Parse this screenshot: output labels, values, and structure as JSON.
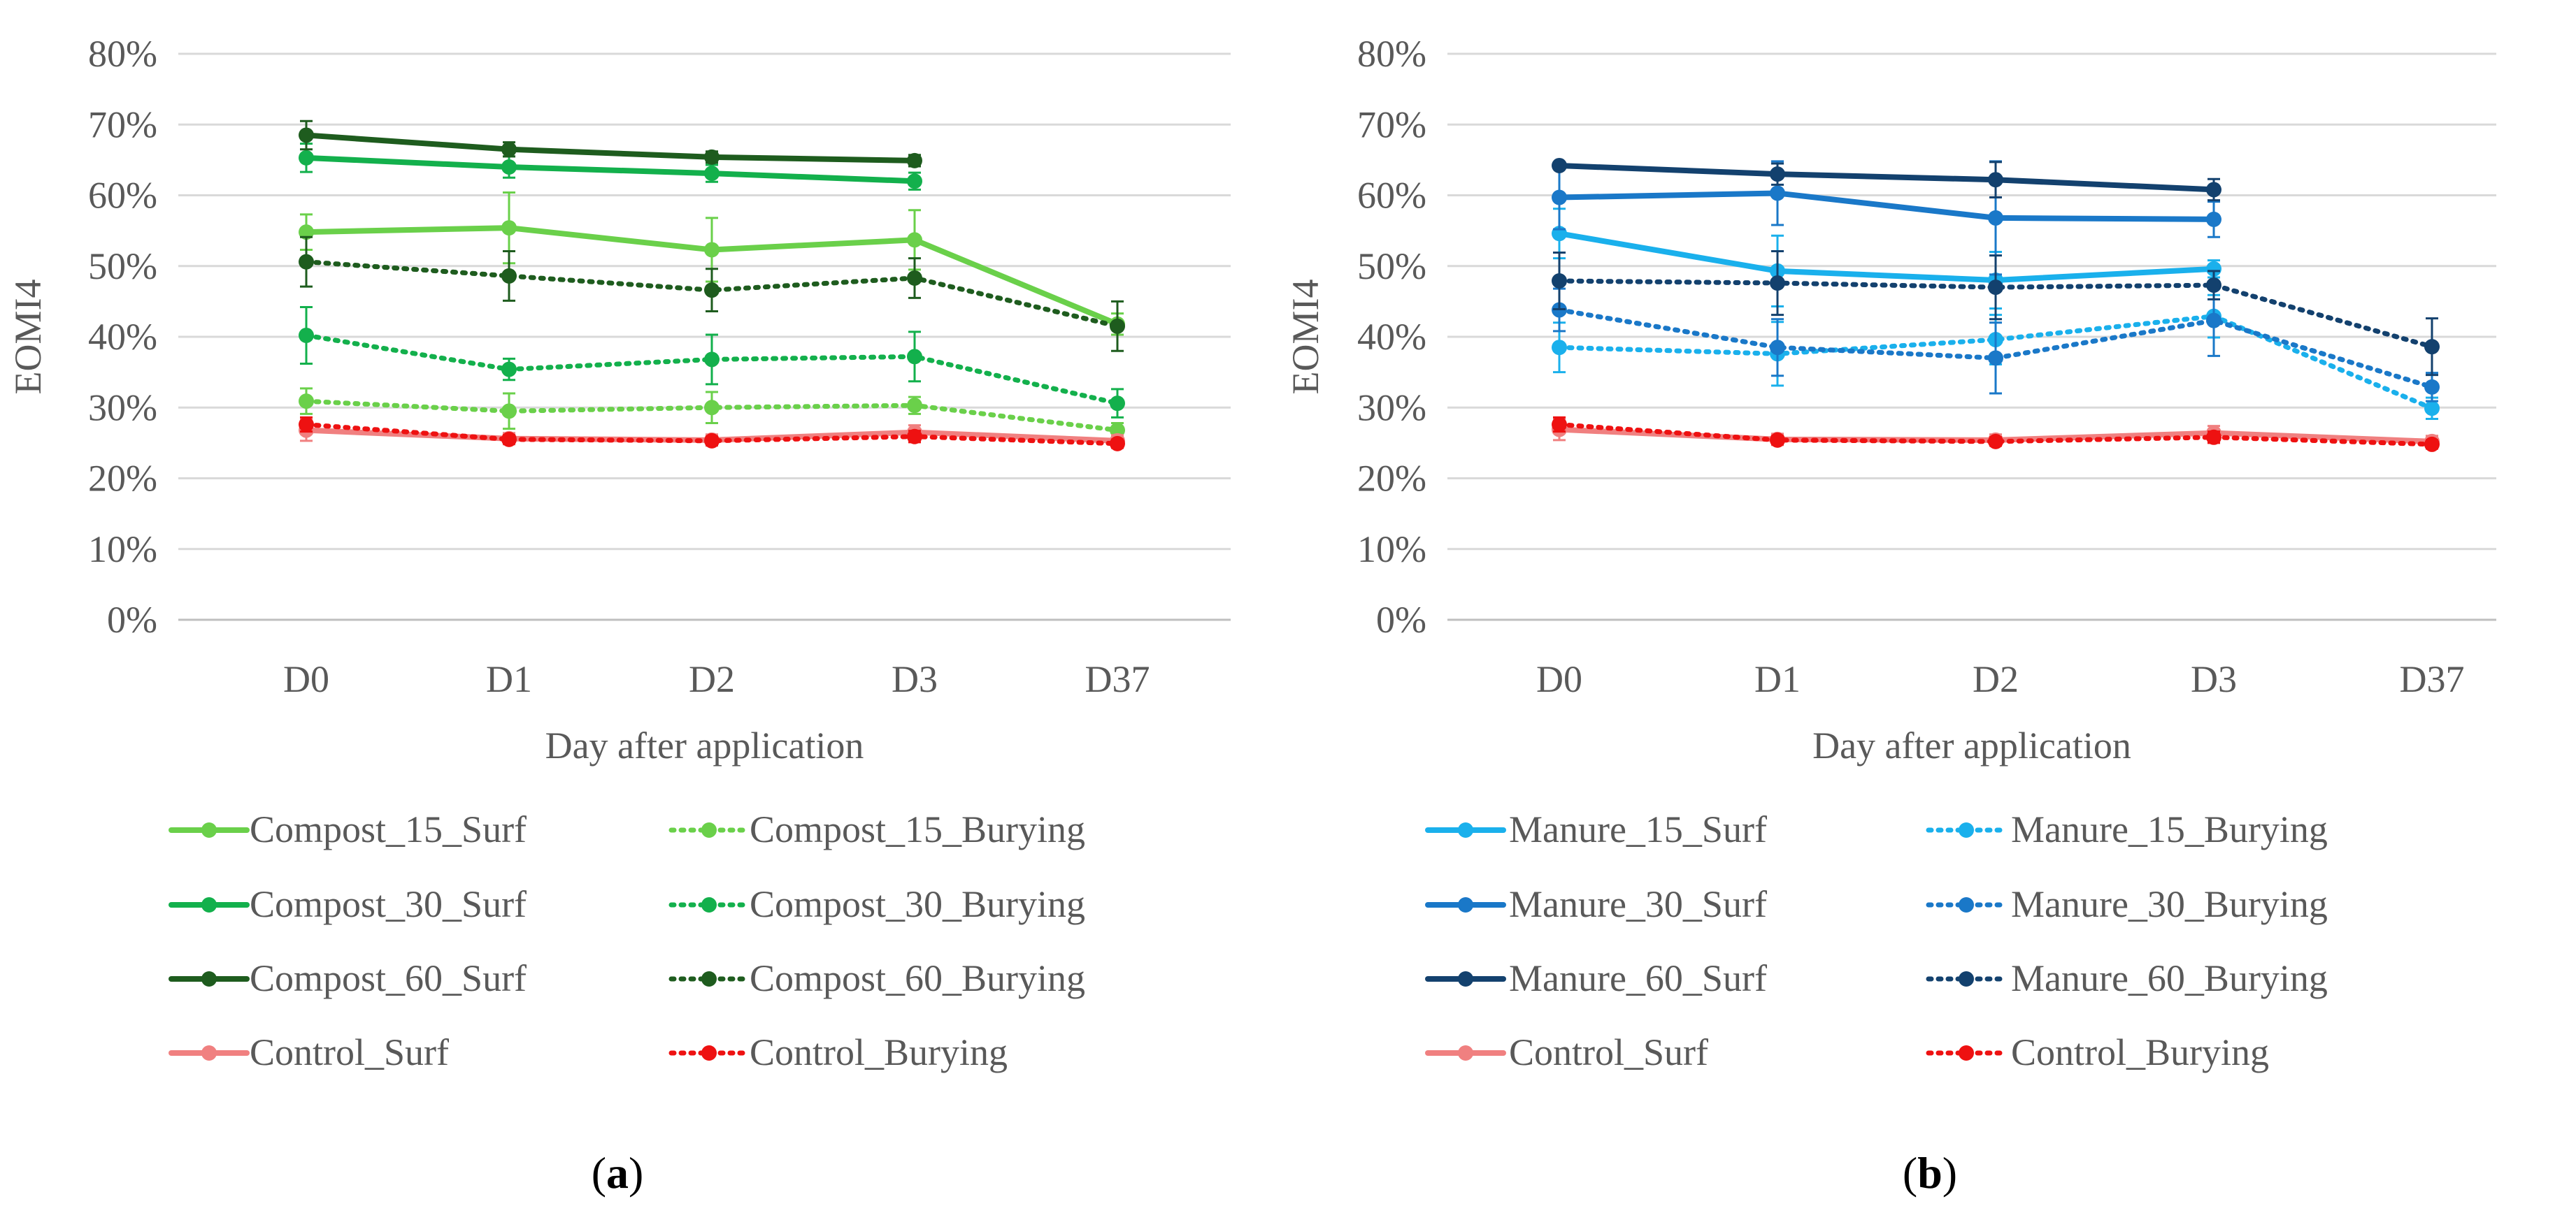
{
  "figure_title": "",
  "chart_data": [
    {
      "type": "line",
      "panel_label": "(a)",
      "categories": [
        "D0",
        "D1",
        "D2",
        "D3",
        "D37"
      ],
      "x_ticks": [
        "D0",
        "D1",
        "D2",
        "D3",
        "D37"
      ],
      "xlabel": "Day after application",
      "ylabel": "EOMI4",
      "ylim": [
        0,
        80
      ],
      "y_ticks": [
        "0%",
        "10%",
        "20%",
        "30%",
        "40%",
        "50%",
        "60%",
        "70%",
        "80%"
      ],
      "grid": true,
      "legend_position": "bottom",
      "series": [
        {
          "name": "Compost_15_Surf",
          "color": "#6ad04a",
          "dash": "solid",
          "values": [
            54.8,
            55.4,
            52.3,
            53.7,
            41.8
          ],
          "errors": [
            2.5,
            5.0,
            4.5,
            4.2,
            1.5
          ]
        },
        {
          "name": "Compost_15_Burying",
          "color": "#6ad04a",
          "dash": "dotted",
          "values": [
            30.9,
            29.5,
            30.0,
            30.3,
            26.8
          ],
          "errors": [
            1.8,
            2.5,
            2.2,
            1.2,
            1.0
          ]
        },
        {
          "name": "Compost_30_Surf",
          "color": "#13b04c",
          "dash": "solid",
          "values": [
            65.3,
            64.0,
            63.1,
            62.0,
            null
          ],
          "errors": [
            2.0,
            1.5,
            1.2,
            1.2,
            null
          ]
        },
        {
          "name": "Compost_30_Burying",
          "color": "#13b04c",
          "dash": "dotted",
          "values": [
            40.2,
            35.4,
            36.8,
            37.2,
            30.6
          ],
          "errors": [
            4.0,
            1.5,
            3.5,
            3.5,
            2.0
          ]
        },
        {
          "name": "Compost_60_Surf",
          "color": "#1e5c1e",
          "dash": "solid",
          "values": [
            68.5,
            66.5,
            65.4,
            64.9,
            null
          ],
          "errors": [
            2.0,
            1.0,
            0.8,
            0.8,
            null
          ]
        },
        {
          "name": "Compost_60_Burying",
          "color": "#1e5c1e",
          "dash": "dotted",
          "values": [
            50.6,
            48.6,
            46.6,
            48.3,
            41.5
          ],
          "errors": [
            3.5,
            3.5,
            3.0,
            2.8,
            3.5
          ]
        },
        {
          "name": "Control_Surf",
          "color": "#f08080",
          "dash": "solid",
          "values": [
            26.8,
            25.6,
            25.4,
            26.5,
            25.3
          ],
          "errors": [
            1.5,
            0.8,
            0.8,
            1.0,
            0.8
          ]
        },
        {
          "name": "Control_Burying",
          "color": "#ee1111",
          "dash": "dotted",
          "values": [
            27.6,
            25.5,
            25.3,
            25.9,
            24.9
          ],
          "errors": [
            1.0,
            0.6,
            0.6,
            0.8,
            0.6
          ]
        }
      ]
    },
    {
      "type": "line",
      "panel_label": "(b)",
      "categories": [
        "D0",
        "D1",
        "D2",
        "D3",
        "D37"
      ],
      "x_ticks": [
        "D0",
        "D1",
        "D2",
        "D3",
        "D37"
      ],
      "xlabel": "Day after application",
      "ylabel": "EOMI4",
      "ylim": [
        0,
        80
      ],
      "y_ticks": [
        "0%",
        "10%",
        "20%",
        "30%",
        "40%",
        "50%",
        "60%",
        "70%",
        "80%"
      ],
      "grid": true,
      "legend_position": "bottom",
      "series": [
        {
          "name": "Manure_15_Surf",
          "color": "#1ab0ec",
          "dash": "solid",
          "values": [
            54.6,
            49.3,
            48.0,
            49.6,
            null
          ],
          "errors": [
            3.5,
            5.0,
            4.0,
            1.2,
            null
          ]
        },
        {
          "name": "Manure_15_Burying",
          "color": "#1ab0ec",
          "dash": "dotted",
          "values": [
            38.5,
            37.6,
            39.6,
            42.9,
            29.9
          ],
          "errors": [
            3.5,
            4.5,
            3.5,
            3.0,
            1.5
          ]
        },
        {
          "name": "Manure_30_Surf",
          "color": "#1a78c8",
          "dash": "solid",
          "values": [
            59.7,
            60.3,
            56.8,
            56.6,
            null
          ],
          "errors": [
            4.5,
            4.5,
            8.0,
            2.5,
            null
          ]
        },
        {
          "name": "Manure_30_Burying",
          "color": "#1a78c8",
          "dash": "dotted",
          "values": [
            43.8,
            38.5,
            37.0,
            42.3,
            32.9
          ],
          "errors": [
            3.0,
            4.0,
            5.0,
            5.0,
            2.0
          ]
        },
        {
          "name": "Manure_60_Surf",
          "color": "#13416e",
          "dash": "solid",
          "values": [
            64.2,
            63.0,
            62.2,
            60.8,
            null
          ],
          "errors": [
            0.5,
            1.5,
            2.5,
            1.5,
            null
          ]
        },
        {
          "name": "Manure_60_Burying",
          "color": "#13416e",
          "dash": "dotted",
          "values": [
            47.9,
            47.6,
            47.0,
            47.3,
            38.6
          ],
          "errors": [
            4.0,
            4.5,
            4.5,
            2.0,
            4.0
          ]
        },
        {
          "name": "Control_Surf",
          "color": "#f08080",
          "dash": "solid",
          "values": [
            26.9,
            25.5,
            25.4,
            26.4,
            25.2
          ],
          "errors": [
            1.5,
            0.8,
            0.8,
            1.0,
            0.8
          ]
        },
        {
          "name": "Control_Burying",
          "color": "#ee1111",
          "dash": "dotted",
          "values": [
            27.6,
            25.4,
            25.2,
            25.8,
            24.8
          ],
          "errors": [
            1.0,
            0.6,
            0.6,
            0.8,
            0.6
          ]
        }
      ]
    }
  ]
}
